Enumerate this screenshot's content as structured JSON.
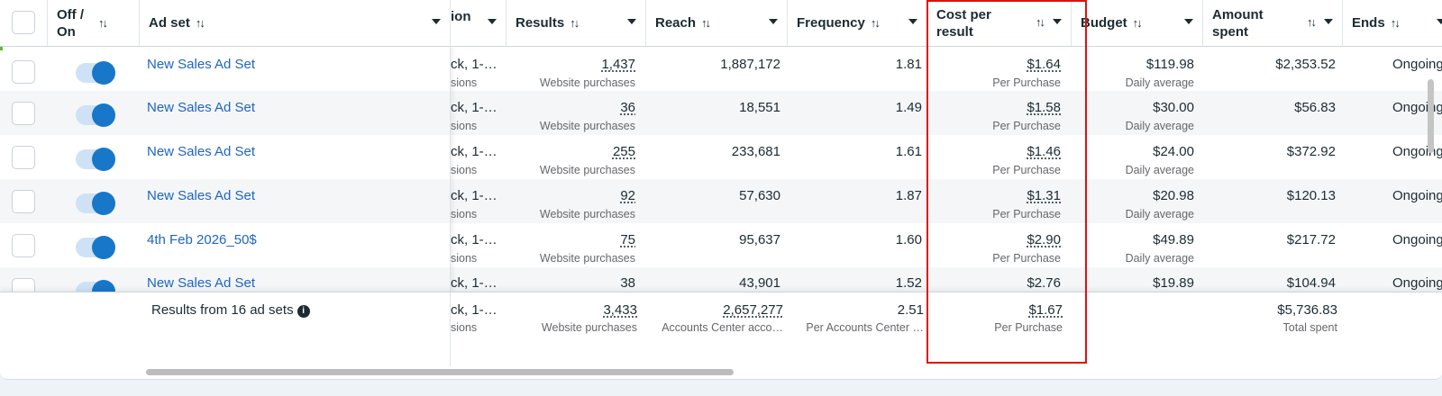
{
  "headers": {
    "off_on": "Off /\nOn",
    "ad_set": "Ad set",
    "ion": "ion",
    "results": "Results",
    "reach": "Reach",
    "frequency": "Frequency",
    "cost_per_result": "Cost per\nresult",
    "budget": "Budget",
    "amount_spent": "Amount\nspent",
    "ends": "Ends",
    "sort_glyph": "↑↓"
  },
  "rows": [
    {
      "name": "New Sales Ad Set",
      "ion": "ck, 1-…",
      "ion_sub": "sions",
      "results": "1,437",
      "results_sub": "Website purchases",
      "reach": "1,887,172",
      "frequency": "1.81",
      "cost": "$1.64",
      "cost_sub": "Per Purchase",
      "budget": "$119.98",
      "budget_sub": "Daily average",
      "spent": "$2,353.52",
      "ends": "Ongoing"
    },
    {
      "name": "New Sales Ad Set",
      "ion": "ck, 1-…",
      "ion_sub": "sions",
      "results": "36",
      "results_sub": "Website purchases",
      "reach": "18,551",
      "frequency": "1.49",
      "cost": "$1.58",
      "cost_sub": "Per Purchase",
      "budget": "$30.00",
      "budget_sub": "Daily average",
      "spent": "$56.83",
      "ends": "Ongoing"
    },
    {
      "name": "New Sales Ad Set",
      "ion": "ck, 1-…",
      "ion_sub": "sions",
      "results": "255",
      "results_sub": "Website purchases",
      "reach": "233,681",
      "frequency": "1.61",
      "cost": "$1.46",
      "cost_sub": "Per Purchase",
      "budget": "$24.00",
      "budget_sub": "Daily average",
      "spent": "$372.92",
      "ends": "Ongoing"
    },
    {
      "name": "New Sales Ad Set",
      "ion": "ck, 1-…",
      "ion_sub": "sions",
      "results": "92",
      "results_sub": "Website purchases",
      "reach": "57,630",
      "frequency": "1.87",
      "cost": "$1.31",
      "cost_sub": "Per Purchase",
      "budget": "$20.98",
      "budget_sub": "Daily average",
      "spent": "$120.13",
      "ends": "Ongoing"
    },
    {
      "name": "4th Feb 2026_50$",
      "ion": "ck, 1-…",
      "ion_sub": "sions",
      "results": "75",
      "results_sub": "Website purchases",
      "reach": "95,637",
      "frequency": "1.60",
      "cost": "$2.90",
      "cost_sub": "Per Purchase",
      "budget": "$49.89",
      "budget_sub": "Daily average",
      "spent": "$217.72",
      "ends": "Ongoing"
    },
    {
      "name": "New Sales Ad Set",
      "ion": "ck, 1-…",
      "ion_sub": "",
      "results": "38",
      "results_sub": "",
      "reach": "43,901",
      "frequency": "1.52",
      "cost": "$2.76",
      "cost_sub": "",
      "budget": "$19.89",
      "budget_sub": "",
      "spent": "$104.94",
      "ends": "Ongoing"
    }
  ],
  "footer": {
    "label": "Results from 16 ad sets",
    "info_glyph": "i",
    "ion": "ck, 1-…",
    "ion_sub": "sions",
    "results": "3,433",
    "results_sub": "Website purchases",
    "reach": "2,657,277",
    "reach_sub": "Accounts Center acco…",
    "frequency": "2.51",
    "frequency_sub": "Per Accounts Center …",
    "cost": "$1.67",
    "cost_sub": "Per Purchase",
    "spent": "$5,736.83",
    "spent_sub": "Total spent"
  },
  "colors": {
    "link": "#1d65c1",
    "toggle_on": "#1877c9",
    "highlight": "#e01010"
  }
}
